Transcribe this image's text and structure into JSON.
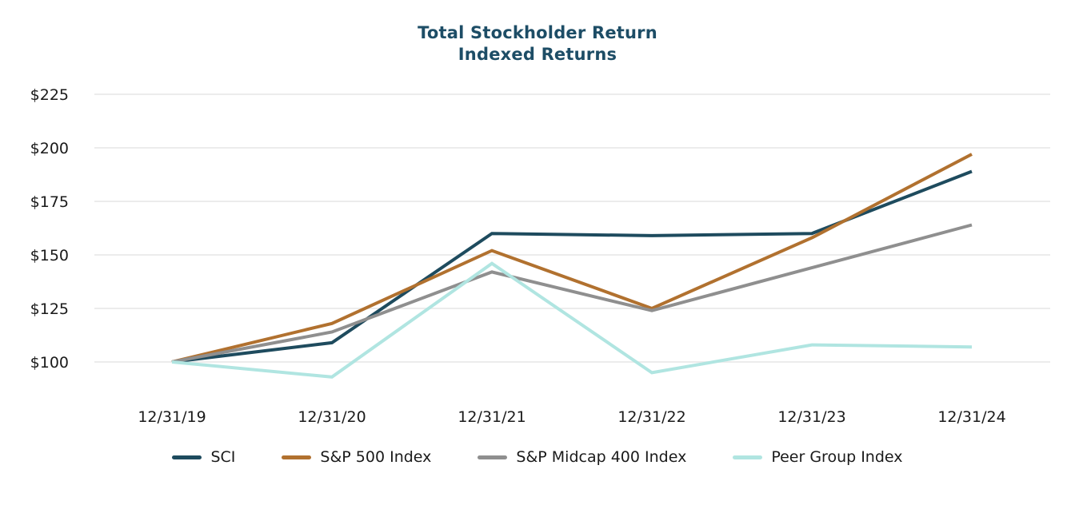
{
  "header": {
    "title": "Total Stockholder Return",
    "subtitle": "Indexed Returns"
  },
  "colors": {
    "title": "#1D4D66",
    "axis_text": "#1A1A1A",
    "gridline": "#ECECEC",
    "background": "#FFFFFF"
  },
  "chart_data": {
    "type": "line",
    "title": "Total Stockholder Return",
    "subtitle": "Indexed Returns",
    "categories": [
      "12/31/19",
      "12/31/20",
      "12/31/21",
      "12/31/22",
      "12/31/23",
      "12/31/24"
    ],
    "series": [
      {
        "name": "SCI",
        "color": "#1E4B5E",
        "values": [
          100,
          109,
          160,
          159,
          160,
          189
        ]
      },
      {
        "name": "S&P 500 Index",
        "color": "#B1712F",
        "values": [
          100,
          118,
          152,
          125,
          158,
          197
        ]
      },
      {
        "name": "S&P Midcap 400 Index",
        "color": "#8F8F8F",
        "values": [
          100,
          114,
          142,
          124,
          144,
          164
        ]
      },
      {
        "name": "Peer Group Index",
        "color": "#B0E5E1",
        "values": [
          100,
          93,
          146,
          95,
          108,
          107
        ]
      }
    ],
    "yticks": {
      "values": [
        100,
        125,
        150,
        175,
        200,
        225
      ],
      "labels": [
        "$100",
        "$125",
        "$150",
        "$175",
        "$200",
        "$225"
      ]
    },
    "ylim": [
      88,
      235
    ],
    "xlabel": "",
    "ylabel": "",
    "grid": "horizontal",
    "legend_position": "bottom"
  }
}
